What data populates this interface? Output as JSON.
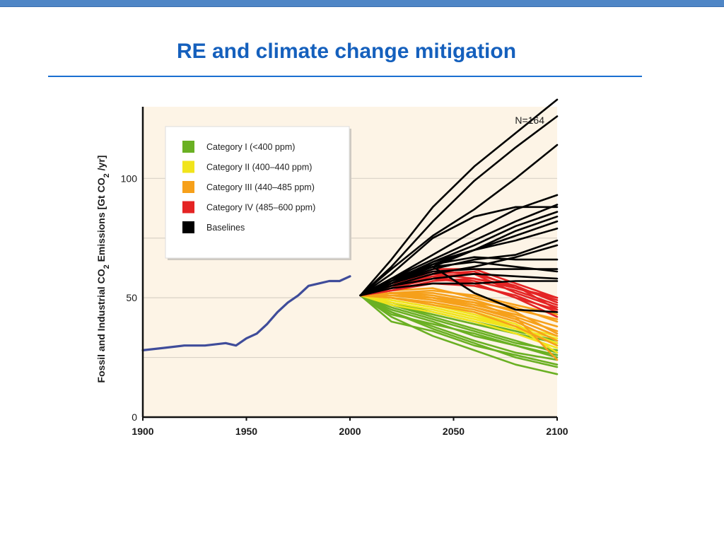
{
  "slide": {
    "title": "RE and climate change mitigation"
  },
  "colors": {
    "accent": "#1560bd",
    "plot_bg": "#fdf4e6",
    "historic": "#3f4c9a",
    "category_1": "#6ab023",
    "category_2": "#f1e41c",
    "category_3": "#f6a01a",
    "category_4": "#e42424",
    "baselines": "#000000"
  },
  "chart_data": {
    "type": "line",
    "annotation": "N=164",
    "ylabel": "Fossil and Industrial CO2 Emissions [Gt CO2/yr]",
    "ylabel_parts": {
      "pre": "Fossil and Industrial CO",
      "sub1": "2",
      "mid": " Emissions [Gt CO",
      "sub2": "2",
      "post": " /yr]"
    },
    "xlim": [
      1900,
      2100
    ],
    "ylim": [
      0,
      130
    ],
    "x_ticks": [
      "1900",
      "1950",
      "2000",
      "2050",
      "2100"
    ],
    "y_ticks": [
      "0",
      "50",
      "100"
    ],
    "grid": "horizontal",
    "legend_position": "top-left",
    "legend": [
      {
        "label": "Category I (<400 ppm)",
        "color": "#6ab023"
      },
      {
        "label": "Category II (400–440 ppm)",
        "color": "#f1e41c"
      },
      {
        "label": "Category III (440–485 ppm)",
        "color": "#f6a01a"
      },
      {
        "label": "Category IV (485–600 ppm)",
        "color": "#e42424"
      },
      {
        "label": "Baselines",
        "color": "#000000"
      }
    ],
    "series": [
      {
        "name": "Historical",
        "color": "#3f4c9a",
        "x": [
          1900,
          1910,
          1920,
          1930,
          1940,
          1945,
          1950,
          1955,
          1960,
          1965,
          1970,
          1975,
          1980,
          1985,
          1990,
          1995,
          2000
        ],
        "y": [
          28,
          29,
          30,
          30,
          31,
          30,
          33,
          35,
          39,
          44,
          48,
          51,
          55,
          56,
          57,
          57,
          59
        ]
      },
      {
        "name": "Category I (<400 ppm)",
        "color": "#6ab023",
        "x": [
          2005,
          2020,
          2040,
          2060,
          2080,
          2100
        ],
        "lines": [
          [
            51,
            47,
            43,
            39,
            35,
            31
          ],
          [
            51,
            44,
            37,
            31,
            25,
            21
          ],
          [
            51,
            48,
            44,
            40,
            36,
            32
          ],
          [
            51,
            45,
            40,
            34,
            30,
            26
          ],
          [
            51,
            42,
            34,
            28,
            22,
            18
          ],
          [
            51,
            46,
            41,
            36,
            31,
            28
          ],
          [
            51,
            40,
            36,
            30,
            26,
            22
          ],
          [
            51,
            47,
            42,
            37,
            32,
            27
          ],
          [
            51,
            44,
            38,
            32,
            27,
            24
          ],
          [
            51,
            43,
            39,
            35,
            30,
            25
          ]
        ]
      },
      {
        "name": "Category II (400–440 ppm)",
        "color": "#f1e41c",
        "x": [
          2005,
          2020,
          2040,
          2060,
          2080,
          2100
        ],
        "lines": [
          [
            51,
            49,
            46,
            42,
            38,
            34
          ],
          [
            51,
            50,
            48,
            44,
            39,
            30
          ],
          [
            51,
            48,
            45,
            41,
            37,
            33
          ],
          [
            51,
            50,
            47,
            43,
            38,
            27
          ],
          [
            51,
            49,
            46,
            42,
            37,
            31
          ],
          [
            51,
            47,
            44,
            40,
            35,
            29
          ]
        ]
      },
      {
        "name": "Category III (440–485 ppm)",
        "color": "#f6a01a",
        "x": [
          2005,
          2020,
          2040,
          2060,
          2080,
          2100
        ],
        "lines": [
          [
            51,
            51,
            50,
            47,
            43,
            38
          ],
          [
            51,
            52,
            52,
            49,
            44,
            35
          ],
          [
            51,
            50,
            48,
            45,
            40,
            32
          ],
          [
            51,
            52,
            51,
            48,
            42,
            24
          ],
          [
            51,
            51,
            49,
            46,
            41,
            34
          ],
          [
            51,
            53,
            54,
            50,
            46,
            40
          ],
          [
            51,
            50,
            47,
            44,
            38,
            30
          ],
          [
            51,
            52,
            50,
            46,
            42,
            36
          ],
          [
            51,
            51,
            50,
            48,
            45,
            41
          ],
          [
            51,
            52,
            53,
            51,
            47,
            43
          ]
        ]
      },
      {
        "name": "Category IV (485–600 ppm)",
        "color": "#e42424",
        "x": [
          2005,
          2020,
          2040,
          2060,
          2080,
          2100
        ],
        "lines": [
          [
            51,
            54,
            60,
            61,
            54,
            50
          ],
          [
            51,
            55,
            59,
            56,
            50,
            45
          ],
          [
            51,
            53,
            57,
            58,
            55,
            48
          ],
          [
            51,
            56,
            61,
            60,
            52,
            46
          ],
          [
            51,
            54,
            58,
            57,
            53,
            47
          ],
          [
            51,
            55,
            62,
            62,
            56,
            50
          ],
          [
            51,
            53,
            56,
            55,
            51,
            44
          ],
          [
            51,
            56,
            60,
            58,
            54,
            49
          ],
          [
            51,
            54,
            59,
            60,
            55,
            45
          ],
          [
            51,
            55,
            58,
            56,
            50,
            42
          ]
        ]
      },
      {
        "name": "Baselines",
        "color": "#000000",
        "x": [
          2005,
          2020,
          2040,
          2060,
          2080,
          2100
        ],
        "lines": [
          [
            51,
            66,
            88,
            105,
            119,
            133
          ],
          [
            51,
            63,
            82,
            99,
            113,
            126
          ],
          [
            51,
            62,
            76,
            87,
            100,
            114
          ],
          [
            51,
            60,
            75,
            84,
            88,
            88
          ],
          [
            51,
            58,
            68,
            78,
            87,
            93
          ],
          [
            51,
            58,
            66,
            74,
            82,
            89
          ],
          [
            51,
            57,
            65,
            72,
            80,
            86
          ],
          [
            51,
            56,
            64,
            70,
            78,
            84
          ],
          [
            51,
            57,
            65,
            70,
            74,
            79
          ],
          [
            51,
            56,
            63,
            70,
            76,
            82
          ],
          [
            51,
            58,
            64,
            67,
            66,
            66
          ],
          [
            51,
            57,
            63,
            65,
            63,
            61
          ],
          [
            51,
            56,
            62,
            66,
            68,
            74
          ],
          [
            51,
            55,
            60,
            63,
            67,
            72
          ],
          [
            51,
            56,
            61,
            62,
            62,
            62
          ],
          [
            51,
            55,
            58,
            60,
            59,
            58
          ],
          [
            51,
            54,
            56,
            56,
            57,
            57
          ],
          [
            51,
            58,
            63,
            52,
            45,
            44
          ]
        ]
      }
    ]
  }
}
